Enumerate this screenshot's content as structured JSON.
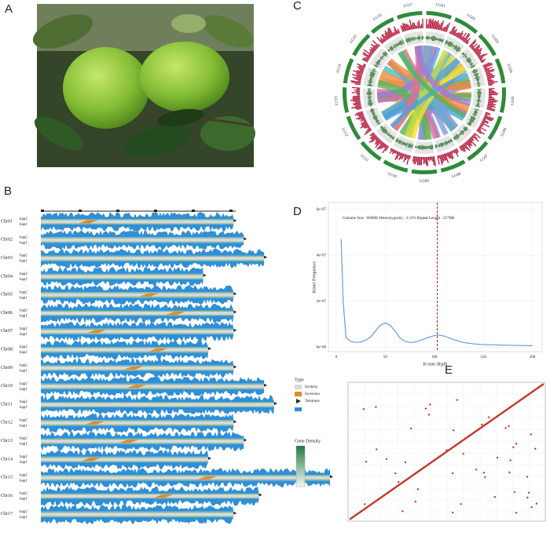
{
  "panel_labels": [
    "A",
    "B",
    "C",
    "D",
    "E"
  ],
  "panel_b": {
    "haplotypes": [
      "hap2",
      "hap1"
    ],
    "chromosomes": [
      {
        "name": "Chr01",
        "length": 38
      },
      {
        "name": "Chr02",
        "length": 40
      },
      {
        "name": "Chr03",
        "length": 44
      },
      {
        "name": "Chr04",
        "length": 32
      },
      {
        "name": "Chr05",
        "length": 38
      },
      {
        "name": "Chr06",
        "length": 38
      },
      {
        "name": "Chr07",
        "length": 38
      },
      {
        "name": "Chr08",
        "length": 33
      },
      {
        "name": "Chr09",
        "length": 38
      },
      {
        "name": "Chr10",
        "length": 44
      },
      {
        "name": "Chr11",
        "length": 46
      },
      {
        "name": "Chr12",
        "length": 38
      },
      {
        "name": "Chr13",
        "length": 40
      },
      {
        "name": "Chr14",
        "length": 33
      },
      {
        "name": "Chr15",
        "length": 57
      },
      {
        "name": "Chr16",
        "length": 43
      },
      {
        "name": "Chr17",
        "length": 38
      }
    ],
    "legend": {
      "title": "Type",
      "items": [
        "Synteny",
        "Inversion",
        "Telomere"
      ],
      "density_title": "Gene Density"
    }
  },
  "panel_c": {
    "groups": [
      "LG01",
      "LG02",
      "LG03",
      "LG04",
      "LG05",
      "LG06",
      "LG07",
      "LG08",
      "LG09",
      "LG10",
      "LG11",
      "LG12",
      "LG13",
      "LG14",
      "LG15",
      "LG16",
      "LG17"
    ]
  },
  "chart_data": {
    "type": "line",
    "annotation": "Genome Size : 666Mb  Heterozygosity : 2.11%  Repeat Length : 257Mb",
    "x_label": "K-mer depth",
    "y_label": "Kmer Frequence",
    "x": [
      5,
      7,
      10,
      15,
      20,
      25,
      30,
      35,
      40,
      45,
      50,
      55,
      60,
      65,
      70,
      75,
      80,
      85,
      90,
      95,
      100,
      105,
      110,
      115,
      120,
      130,
      140,
      150,
      175,
      200
    ],
    "series": [
      {
        "name": "kmer",
        "color": "#6a9bd8",
        "values": [
          47000000,
          20000000,
          4000000,
          2500000,
          2000000,
          2200000,
          3000000,
          4500000,
          7000000,
          9500000,
          10500000,
          9500000,
          7000000,
          4000000,
          2500000,
          2000000,
          2200000,
          2800000,
          3600000,
          4400000,
          5000000,
          5200000,
          4800000,
          4000000,
          3200000,
          2000000,
          1400000,
          1100000,
          800000,
          600000
        ]
      }
    ],
    "reference_line_x": 103,
    "reference_color": "#b22222",
    "xlim": [
      -8,
      210
    ],
    "ylim": [
      -2000000,
      63000000
    ],
    "xticks": [
      0,
      50,
      100,
      150,
      200
    ],
    "yticks": [
      {
        "value": 0,
        "label": "0e+00"
      },
      {
        "value": 20000000,
        "label": "2e+07"
      },
      {
        "value": 40000000,
        "label": "4e+07"
      },
      {
        "value": 60000000,
        "label": "6e+07"
      }
    ],
    "grid": true
  }
}
